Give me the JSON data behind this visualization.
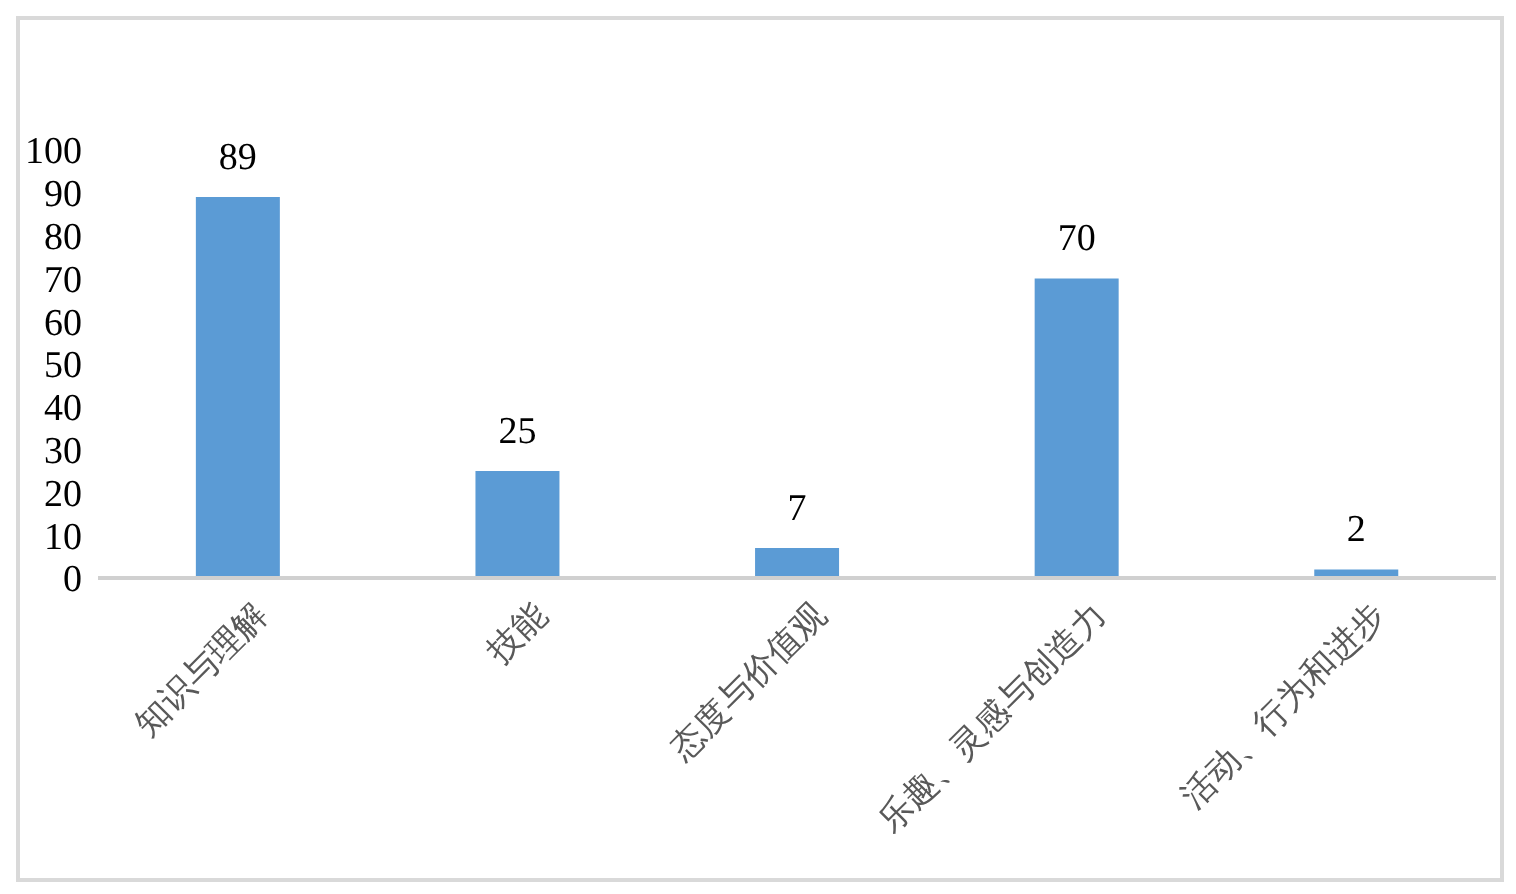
{
  "chart_data": {
    "type": "bar",
    "categories": [
      "知识与理解",
      "技能",
      "态度与价值观",
      "乐趣、灵感与创造力",
      "活动、行为和进步"
    ],
    "values": [
      89,
      25,
      7,
      70,
      2
    ],
    "color": "#5b9bd5",
    "ylim": [
      0,
      100
    ],
    "yticks": [
      0,
      10,
      20,
      30,
      40,
      50,
      60,
      70,
      80,
      90,
      100
    ],
    "grid": false,
    "data_labels": true
  }
}
